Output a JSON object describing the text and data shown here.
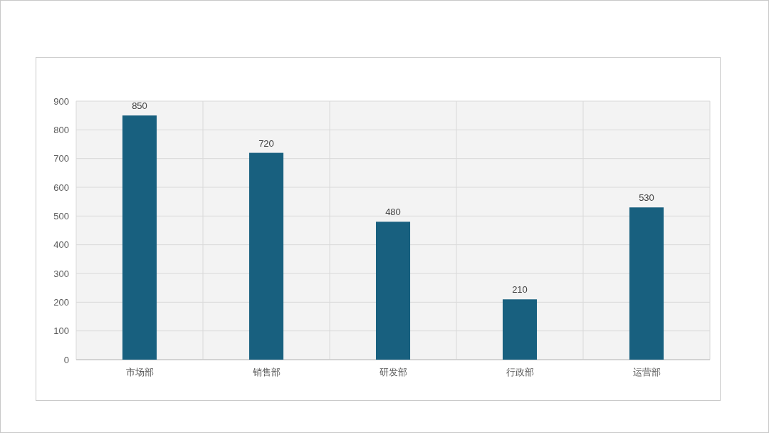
{
  "chart_data": {
    "type": "bar",
    "categories": [
      "市场部",
      "销售部",
      "研发部",
      "行政部",
      "运营部"
    ],
    "values": [
      850,
      720,
      480,
      210,
      530
    ],
    "color": "#18607f",
    "ylim": [
      0,
      900
    ],
    "yticks": [
      0,
      100,
      200,
      300,
      400,
      500,
      600,
      700,
      800,
      900
    ],
    "grid": true,
    "data_labels": true
  }
}
